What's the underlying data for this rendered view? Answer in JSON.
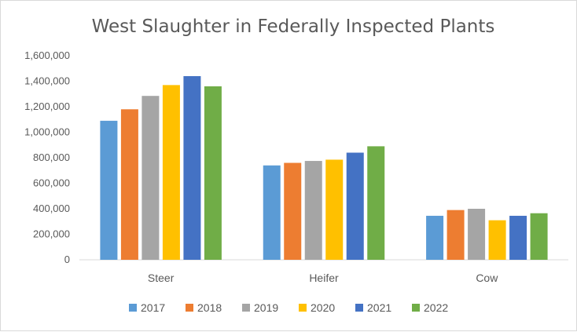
{
  "chart_data": {
    "type": "bar",
    "title": "West  Slaughter in Federally Inspected Plants",
    "xlabel": "",
    "ylabel": "",
    "ylim": [
      0,
      1600000
    ],
    "yticks": [
      "0",
      "200,000",
      "400,000",
      "600,000",
      "800,000",
      "1,000,000",
      "1,200,000",
      "1,400,000",
      "1,600,000"
    ],
    "categories": [
      "Steer",
      "Heifer",
      "Cow"
    ],
    "legend_position": "bottom",
    "grid": false,
    "series": [
      {
        "name": "2017",
        "color": "#5b9bd5",
        "values": [
          1090000,
          740000,
          345000
        ]
      },
      {
        "name": "2018",
        "color": "#ed7d31",
        "values": [
          1180000,
          760000,
          390000
        ]
      },
      {
        "name": "2019",
        "color": "#a5a5a5",
        "values": [
          1285000,
          775000,
          400000
        ]
      },
      {
        "name": "2020",
        "color": "#ffc000",
        "values": [
          1370000,
          785000,
          310000
        ]
      },
      {
        "name": "2021",
        "color": "#4472c4",
        "values": [
          1440000,
          840000,
          345000
        ]
      },
      {
        "name": "2022",
        "color": "#70ad47",
        "values": [
          1360000,
          890000,
          365000
        ]
      }
    ]
  }
}
